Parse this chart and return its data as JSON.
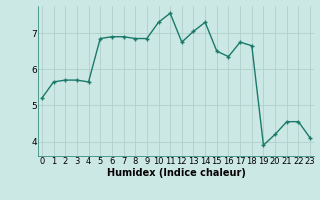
{
  "x": [
    0,
    1,
    2,
    3,
    4,
    5,
    6,
    7,
    8,
    9,
    10,
    11,
    12,
    13,
    14,
    15,
    16,
    17,
    18,
    19,
    20,
    21,
    22,
    23
  ],
  "y": [
    5.2,
    5.65,
    5.7,
    5.7,
    5.65,
    6.85,
    6.9,
    6.9,
    6.85,
    6.85,
    7.3,
    7.55,
    6.75,
    7.05,
    7.3,
    6.5,
    6.35,
    6.75,
    6.65,
    3.9,
    4.2,
    4.55,
    4.55,
    4.1
  ],
  "line_color": "#1a7a6a",
  "marker": "+",
  "marker_size": 3,
  "marker_linewidth": 1.0,
  "line_width": 1.0,
  "background_color": "#cce8e4",
  "grid_color": "#b0d0cc",
  "xlabel": "Humidex (Indice chaleur)",
  "xlabel_fontsize": 7,
  "tick_fontsize": 6,
  "ytick_fontsize": 6.5,
  "yticks": [
    4,
    5,
    6,
    7
  ],
  "xticks": [
    0,
    1,
    2,
    3,
    4,
    5,
    6,
    7,
    8,
    9,
    10,
    11,
    12,
    13,
    14,
    15,
    16,
    17,
    18,
    19,
    20,
    21,
    22,
    23
  ],
  "xlim": [
    -0.3,
    23.3
  ],
  "ylim": [
    3.6,
    7.75
  ]
}
